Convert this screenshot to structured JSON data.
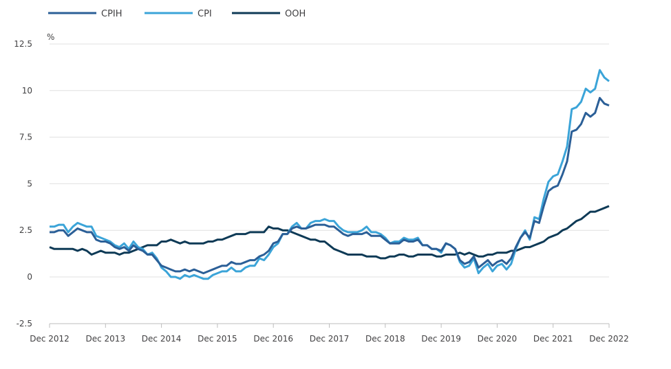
{
  "chart_data": {
    "type": "line",
    "ylabel": "%",
    "ylim": [
      -2.5,
      12.5
    ],
    "yticks": [
      "-2.5",
      "0",
      "2.5",
      "5",
      "7.5",
      "10",
      "12.5"
    ],
    "yticks_values": [
      -2.5,
      0,
      2.5,
      5,
      7.5,
      10,
      12.5
    ],
    "x_start": "Dec 2012",
    "x_end": "Dec 2022",
    "x_frequency": "monthly",
    "xticks": [
      "Dec 2012",
      "Dec 2013",
      "Dec 2014",
      "Dec 2015",
      "Dec 2016",
      "Dec 2017",
      "Dec 2018",
      "Dec 2019",
      "Dec 2020",
      "Dec 2021",
      "Dec 2022"
    ],
    "grid": "horizontal",
    "legend": "top-left",
    "series": [
      {
        "name": "CPIH",
        "color": "#2b5f97",
        "values": [
          2.4,
          2.4,
          2.5,
          2.5,
          2.2,
          2.4,
          2.6,
          2.5,
          2.4,
          2.4,
          2.0,
          1.9,
          1.9,
          1.8,
          1.6,
          1.5,
          1.6,
          1.4,
          1.7,
          1.5,
          1.4,
          1.2,
          1.2,
          0.9,
          0.6,
          0.5,
          0.4,
          0.3,
          0.3,
          0.4,
          0.3,
          0.4,
          0.3,
          0.2,
          0.3,
          0.4,
          0.5,
          0.6,
          0.6,
          0.8,
          0.7,
          0.7,
          0.8,
          0.9,
          0.9,
          1.1,
          1.2,
          1.4,
          1.8,
          1.9,
          2.3,
          2.3,
          2.6,
          2.7,
          2.6,
          2.6,
          2.7,
          2.8,
          2.8,
          2.8,
          2.7,
          2.7,
          2.5,
          2.3,
          2.2,
          2.3,
          2.3,
          2.3,
          2.4,
          2.2,
          2.2,
          2.2,
          2.0,
          1.8,
          1.8,
          1.8,
          2.0,
          1.9,
          1.9,
          2.0,
          1.7,
          1.7,
          1.5,
          1.5,
          1.4,
          1.8,
          1.7,
          1.5,
          0.9,
          0.7,
          0.8,
          1.1,
          0.5,
          0.7,
          0.9,
          0.6,
          0.8,
          0.9,
          0.7,
          1.0,
          1.6,
          2.1,
          2.4,
          2.1,
          3.0,
          2.9,
          3.8,
          4.6,
          4.8,
          4.9,
          5.5,
          6.2,
          7.8,
          7.9,
          8.2,
          8.8,
          8.6,
          8.8,
          9.6,
          9.3,
          9.2
        ]
      },
      {
        "name": "CPI",
        "color": "#3ba4d8",
        "values": [
          2.7,
          2.7,
          2.8,
          2.8,
          2.4,
          2.7,
          2.9,
          2.8,
          2.7,
          2.7,
          2.2,
          2.1,
          2.0,
          1.9,
          1.7,
          1.6,
          1.8,
          1.5,
          1.9,
          1.6,
          1.5,
          1.2,
          1.3,
          1.0,
          0.5,
          0.3,
          0.0,
          0.0,
          -0.1,
          0.1,
          0.0,
          0.1,
          0.0,
          -0.1,
          -0.1,
          0.1,
          0.2,
          0.3,
          0.3,
          0.5,
          0.3,
          0.3,
          0.5,
          0.6,
          0.6,
          1.0,
          0.9,
          1.2,
          1.6,
          1.8,
          2.3,
          2.3,
          2.7,
          2.9,
          2.6,
          2.6,
          2.9,
          3.0,
          3.0,
          3.1,
          3.0,
          3.0,
          2.7,
          2.5,
          2.4,
          2.4,
          2.4,
          2.5,
          2.7,
          2.4,
          2.4,
          2.3,
          2.1,
          1.8,
          1.9,
          1.9,
          2.1,
          2.0,
          2.0,
          2.1,
          1.7,
          1.7,
          1.5,
          1.5,
          1.3,
          1.8,
          1.7,
          1.5,
          0.8,
          0.5,
          0.6,
          1.0,
          0.2,
          0.5,
          0.7,
          0.3,
          0.6,
          0.7,
          0.4,
          0.7,
          1.5,
          2.1,
          2.5,
          2.0,
          3.2,
          3.1,
          4.2,
          5.1,
          5.4,
          5.5,
          6.2,
          7.0,
          9.0,
          9.1,
          9.4,
          10.1,
          9.9,
          10.1,
          11.1,
          10.7,
          10.5
        ]
      },
      {
        "name": "OOH",
        "color": "#0e3a56",
        "values": [
          1.6,
          1.5,
          1.5,
          1.5,
          1.5,
          1.5,
          1.4,
          1.5,
          1.4,
          1.2,
          1.3,
          1.4,
          1.3,
          1.3,
          1.3,
          1.2,
          1.3,
          1.3,
          1.4,
          1.5,
          1.6,
          1.7,
          1.7,
          1.7,
          1.9,
          1.9,
          2.0,
          1.9,
          1.8,
          1.9,
          1.8,
          1.8,
          1.8,
          1.8,
          1.9,
          1.9,
          2.0,
          2.0,
          2.1,
          2.2,
          2.3,
          2.3,
          2.3,
          2.4,
          2.4,
          2.4,
          2.4,
          2.7,
          2.6,
          2.6,
          2.5,
          2.5,
          2.4,
          2.3,
          2.2,
          2.1,
          2.0,
          2.0,
          1.9,
          1.9,
          1.7,
          1.5,
          1.4,
          1.3,
          1.2,
          1.2,
          1.2,
          1.2,
          1.1,
          1.1,
          1.1,
          1.0,
          1.0,
          1.1,
          1.1,
          1.2,
          1.2,
          1.1,
          1.1,
          1.2,
          1.2,
          1.2,
          1.2,
          1.1,
          1.1,
          1.2,
          1.2,
          1.2,
          1.3,
          1.2,
          1.3,
          1.2,
          1.1,
          1.1,
          1.2,
          1.2,
          1.3,
          1.3,
          1.3,
          1.4,
          1.4,
          1.5,
          1.6,
          1.6,
          1.7,
          1.8,
          1.9,
          2.1,
          2.2,
          2.3,
          2.5,
          2.6,
          2.8,
          3.0,
          3.1,
          3.3,
          3.5,
          3.5,
          3.6,
          3.7,
          3.8
        ]
      }
    ]
  }
}
